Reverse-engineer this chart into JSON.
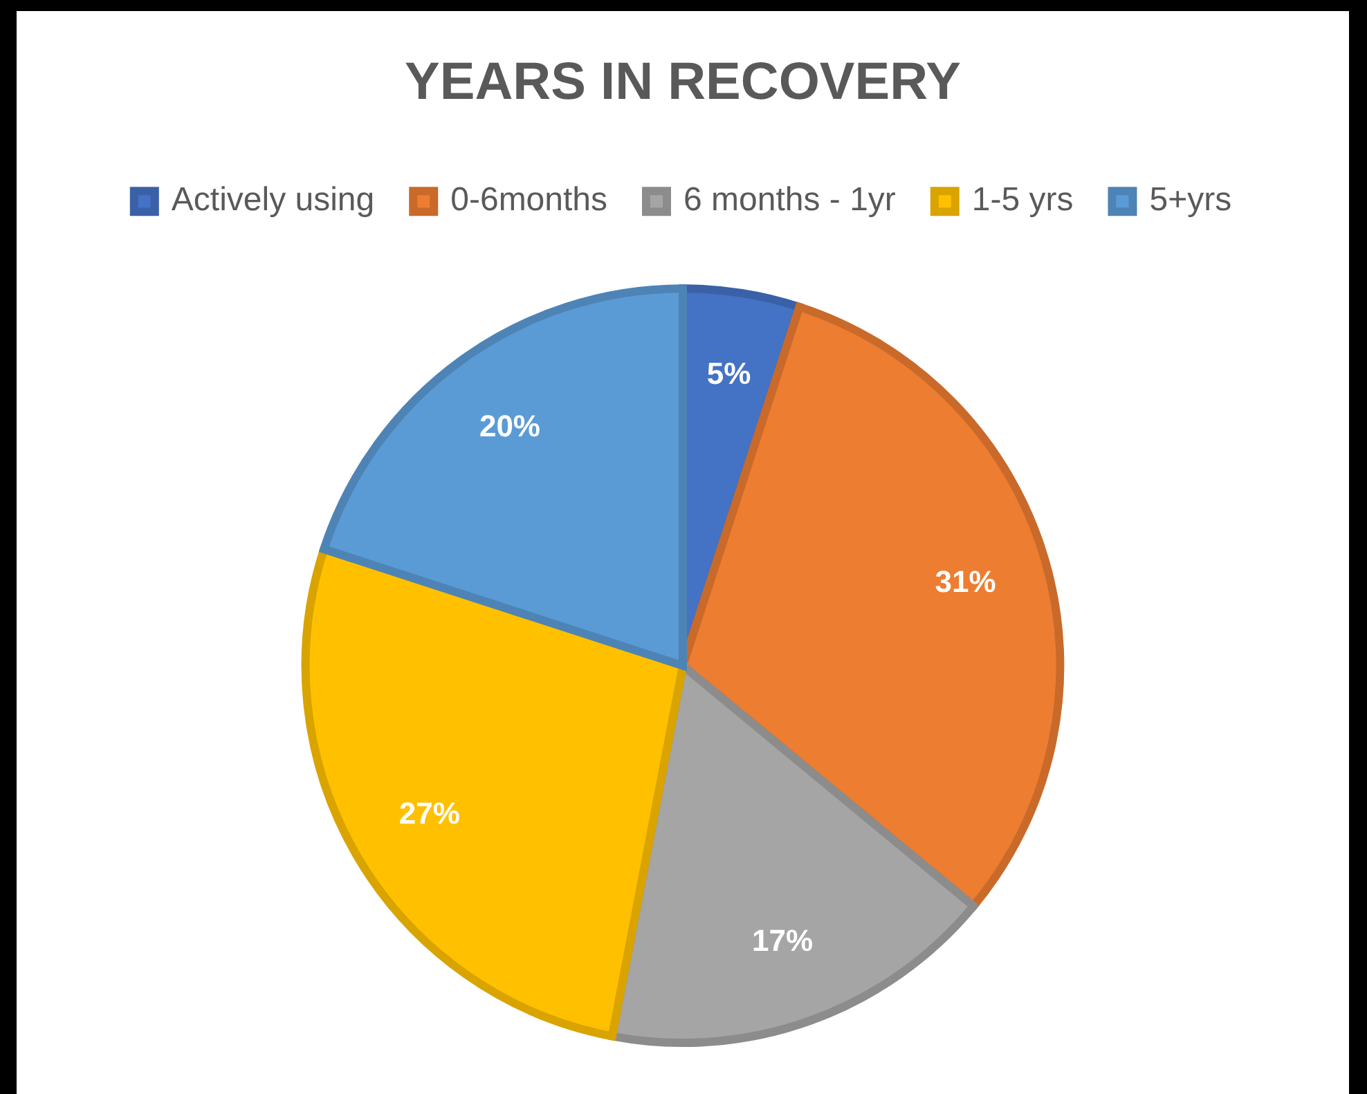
{
  "chart_data": {
    "type": "pie",
    "title": "YEARS IN RECOVERY",
    "categories": [
      "Actively using",
      "0-6months",
      "6 months - 1yr",
      "1-5 yrs",
      "5+yrs"
    ],
    "values": [
      5,
      31,
      17,
      27,
      20
    ],
    "colors": [
      "#4472c4",
      "#ed7d31",
      "#a5a5a5",
      "#ffc000",
      "#5b9bd5"
    ],
    "value_labels": [
      "5%",
      "31%",
      "17%",
      "27%",
      "20%"
    ],
    "legend": "top"
  }
}
